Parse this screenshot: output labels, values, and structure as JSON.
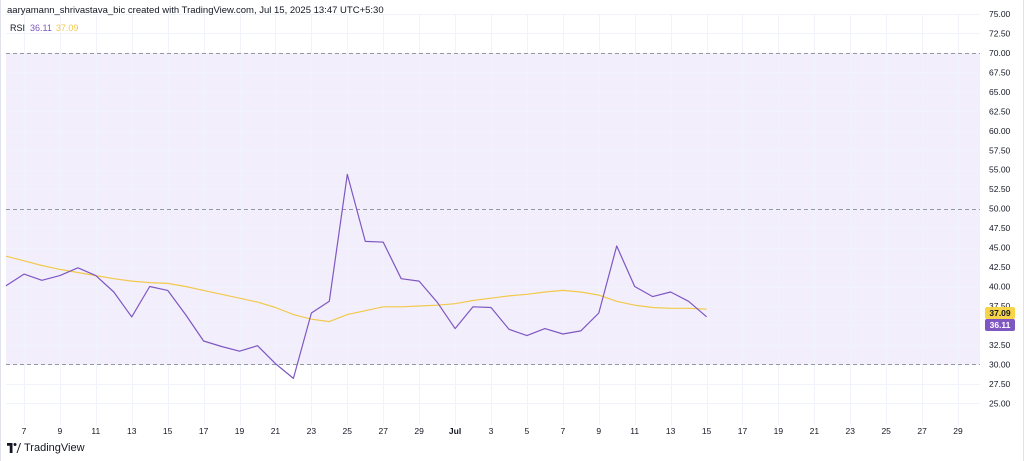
{
  "header": {
    "attribution": "aaryamann_shrivastava_bic created with TradingView.com, Jul 15, 2025 13:47 UTC+5:30"
  },
  "legend": {
    "indicator_name": "RSI",
    "rsi_value": "36.11",
    "ma_value": "37.09"
  },
  "footer": {
    "brand": "TradingView"
  },
  "colors": {
    "rsi_line": "#7e57c2",
    "ma_line": "#f2c94c",
    "band_fill": "#f3eefc",
    "ma_badge": "#f7d54a",
    "rsi_badge": "#7e57c2"
  },
  "chart_data": {
    "type": "line",
    "title": "",
    "xlabel": "",
    "ylabel": "",
    "ylim": [
      23.5,
      75
    ],
    "y_ticks": [
      "75.00",
      "72.50",
      "70.00",
      "67.50",
      "65.00",
      "62.50",
      "60.00",
      "57.50",
      "55.00",
      "52.50",
      "50.00",
      "47.50",
      "45.00",
      "42.50",
      "40.00",
      "37.50",
      "35.00",
      "32.50",
      "30.00",
      "27.50",
      "25.00"
    ],
    "x_tick_labels": [
      "7",
      "9",
      "11",
      "13",
      "15",
      "17",
      "19",
      "21",
      "23",
      "25",
      "27",
      "29",
      "Jul",
      "3",
      "5",
      "7",
      "9",
      "11",
      "13",
      "15",
      "17",
      "19",
      "21",
      "23",
      "25",
      "27",
      "29"
    ],
    "x_tick_dates": [
      "2025-06-07",
      "2025-06-09",
      "2025-06-11",
      "2025-06-13",
      "2025-06-15",
      "2025-06-17",
      "2025-06-19",
      "2025-06-21",
      "2025-06-23",
      "2025-06-25",
      "2025-06-27",
      "2025-06-29",
      "2025-07-01",
      "2025-07-03",
      "2025-07-05",
      "2025-07-07",
      "2025-07-09",
      "2025-07-11",
      "2025-07-13",
      "2025-07-15",
      "2025-07-17",
      "2025-07-19",
      "2025-07-21",
      "2025-07-23",
      "2025-07-25",
      "2025-07-27",
      "2025-07-29"
    ],
    "xlim": [
      "2025-06-06",
      "2025-07-30"
    ],
    "levels": [
      70,
      50,
      30
    ],
    "band": [
      30,
      70
    ],
    "current_labels": [
      {
        "series": "MA",
        "value": 37.09
      },
      {
        "series": "RSI",
        "value": 36.11
      }
    ],
    "series": [
      {
        "name": "RSI",
        "x": [
          "2025-06-06",
          "2025-06-07",
          "2025-06-08",
          "2025-06-09",
          "2025-06-10",
          "2025-06-11",
          "2025-06-12",
          "2025-06-13",
          "2025-06-14",
          "2025-06-15",
          "2025-06-16",
          "2025-06-17",
          "2025-06-18",
          "2025-06-19",
          "2025-06-20",
          "2025-06-21",
          "2025-06-22",
          "2025-06-23",
          "2025-06-24",
          "2025-06-25",
          "2025-06-26",
          "2025-06-27",
          "2025-06-28",
          "2025-06-29",
          "2025-06-30",
          "2025-07-01",
          "2025-07-02",
          "2025-07-03",
          "2025-07-04",
          "2025-07-05",
          "2025-07-06",
          "2025-07-07",
          "2025-07-08",
          "2025-07-09",
          "2025-07-10",
          "2025-07-11",
          "2025-07-12",
          "2025-07-13",
          "2025-07-14",
          "2025-07-15"
        ],
        "values": [
          40.1,
          41.6,
          40.8,
          41.4,
          42.4,
          41.4,
          39.3,
          36.1,
          40.0,
          39.5,
          36.4,
          33.0,
          32.3,
          31.7,
          32.4,
          30.1,
          28.2,
          36.6,
          38.1,
          54.4,
          45.8,
          45.7,
          41.0,
          40.7,
          38.0,
          34.6,
          37.4,
          37.3,
          34.5,
          33.7,
          34.6,
          33.9,
          34.3,
          36.6,
          45.2,
          40.0,
          38.7,
          39.3,
          38.1,
          36.11
        ]
      },
      {
        "name": "MA",
        "x": [
          "2025-06-06",
          "2025-06-07",
          "2025-06-08",
          "2025-06-09",
          "2025-06-10",
          "2025-06-11",
          "2025-06-12",
          "2025-06-13",
          "2025-06-14",
          "2025-06-15",
          "2025-06-16",
          "2025-06-17",
          "2025-06-18",
          "2025-06-19",
          "2025-06-20",
          "2025-06-21",
          "2025-06-22",
          "2025-06-23",
          "2025-06-24",
          "2025-06-25",
          "2025-06-26",
          "2025-06-27",
          "2025-06-28",
          "2025-06-29",
          "2025-06-30",
          "2025-07-01",
          "2025-07-02",
          "2025-07-03",
          "2025-07-04",
          "2025-07-05",
          "2025-07-06",
          "2025-07-07",
          "2025-07-08",
          "2025-07-09",
          "2025-07-10",
          "2025-07-11",
          "2025-07-12",
          "2025-07-13",
          "2025-07-14",
          "2025-07-15"
        ],
        "values": [
          43.9,
          43.3,
          42.7,
          42.2,
          41.8,
          41.4,
          41.0,
          40.7,
          40.5,
          40.4,
          40.0,
          39.5,
          39.0,
          38.5,
          38.0,
          37.3,
          36.4,
          35.8,
          35.5,
          36.4,
          36.9,
          37.4,
          37.4,
          37.5,
          37.6,
          37.8,
          38.2,
          38.5,
          38.8,
          39.0,
          39.3,
          39.5,
          39.3,
          38.9,
          38.1,
          37.6,
          37.3,
          37.2,
          37.2,
          37.09
        ]
      }
    ]
  }
}
